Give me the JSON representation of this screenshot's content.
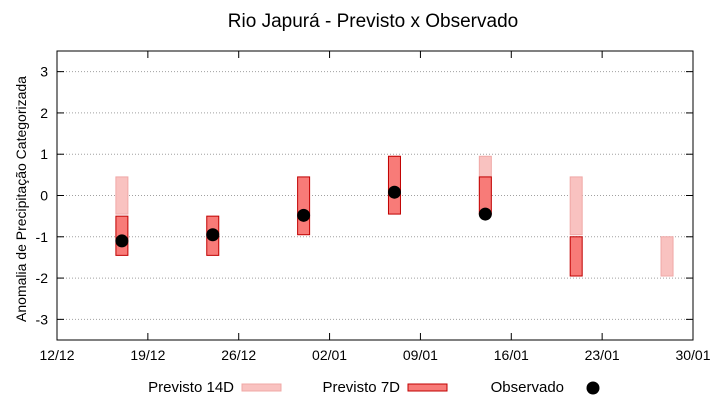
{
  "chart_data": {
    "type": "bar",
    "title": "Rio Japurá - Previsto x Observado",
    "ylabel": "Anomalia de Precipitação Categorizada",
    "xlabel": "",
    "ylim": [
      -3.5,
      3.5
    ],
    "yticks": [
      -3,
      -2,
      -1,
      0,
      1,
      2,
      3
    ],
    "xlim_days": [
      0,
      49
    ],
    "xticks": [
      {
        "day": 0,
        "label": "12/12"
      },
      {
        "day": 7,
        "label": "19/12"
      },
      {
        "day": 14,
        "label": "26/12"
      },
      {
        "day": 21,
        "label": "02/01"
      },
      {
        "day": 28,
        "label": "09/01"
      },
      {
        "day": 35,
        "label": "16/01"
      },
      {
        "day": 42,
        "label": "23/01"
      },
      {
        "day": 49,
        "label": "30/01"
      }
    ],
    "grid": true,
    "series": [
      {
        "name": "Previsto 14D",
        "kind": "range",
        "color": "#f9c2c0",
        "points": [
          {
            "day": 5,
            "low": -0.45,
            "high": 0.45
          },
          {
            "day": 26,
            "low": 0.0,
            "high": 0.95
          },
          {
            "day": 33,
            "low": 0.0,
            "high": 0.95
          },
          {
            "day": 40,
            "low": -0.95,
            "high": 0.45
          },
          {
            "day": 47,
            "low": -1.95,
            "high": -1.0
          }
        ]
      },
      {
        "name": "Previsto 7D",
        "kind": "range",
        "color": "#f87b78",
        "edge": "#c00000",
        "points": [
          {
            "day": 5,
            "low": -1.45,
            "high": -0.5
          },
          {
            "day": 12,
            "low": -1.45,
            "high": -0.5
          },
          {
            "day": 19,
            "low": -0.95,
            "high": 0.45
          },
          {
            "day": 26,
            "low": -0.45,
            "high": 0.95
          },
          {
            "day": 33,
            "low": -0.45,
            "high": 0.45
          },
          {
            "day": 40,
            "low": -1.95,
            "high": -1.0
          }
        ]
      },
      {
        "name": "Observado",
        "kind": "point",
        "color": "#000000",
        "points": [
          {
            "day": 5,
            "value": -1.1
          },
          {
            "day": 12,
            "value": -0.95
          },
          {
            "day": 19,
            "value": -0.48
          },
          {
            "day": 26,
            "value": 0.08
          },
          {
            "day": 33,
            "value": -0.45
          }
        ]
      }
    ],
    "legend": {
      "placement": "bottom",
      "items": [
        "Previsto 14D",
        "Previsto 7D",
        "Observado"
      ]
    }
  }
}
